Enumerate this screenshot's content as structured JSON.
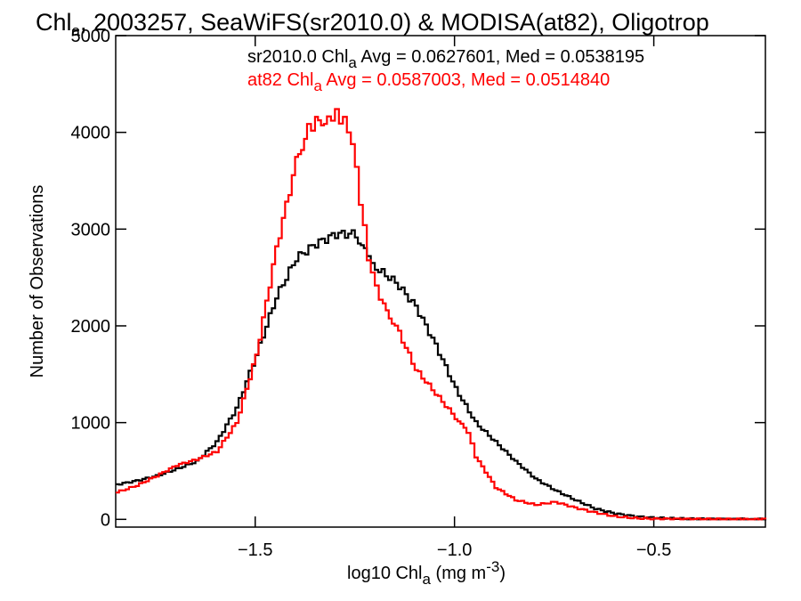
{
  "chart_data": {
    "type": "line",
    "title": {
      "text1": "Chl",
      "sub": "a",
      "text2": ", 2003257, SeaWiFS(sr2010.0) & MODISA(at82), Oligotrop"
    },
    "xlabel": {
      "text1": "log10 Chl",
      "sub": "a",
      "text2": " (mg m",
      "sup": "-3",
      "text3": ")"
    },
    "ylabel": "Number of Observations",
    "xlim": [
      -1.85,
      -0.22
    ],
    "ylim": [
      -80,
      5000
    ],
    "xticks": [
      {
        "v": -1.5,
        "label": "−1.5"
      },
      {
        "v": -1.0,
        "label": "−1.0"
      },
      {
        "v": -0.5,
        "label": "−0.5"
      }
    ],
    "yticks": [
      {
        "v": 0,
        "label": "0"
      },
      {
        "v": 1000,
        "label": "1000"
      },
      {
        "v": 2000,
        "label": "2000"
      },
      {
        "v": 3000,
        "label": "3000"
      },
      {
        "v": 4000,
        "label": "4000"
      },
      {
        "v": 5000,
        "label": "5000"
      }
    ],
    "step": true,
    "series": [
      {
        "name": "sr2010.0",
        "color": "#000000",
        "legend": {
          "text1": "sr2010.0 Chl",
          "sub": "a",
          "text2": " Avg = 0.0627601, Med = 0.0538195"
        },
        "x": [
          -1.85,
          -1.8,
          -1.75,
          -1.7,
          -1.65,
          -1.6,
          -1.55,
          -1.5,
          -1.45,
          -1.4,
          -1.35,
          -1.3,
          -1.25,
          -1.22,
          -1.2,
          -1.15,
          -1.1,
          -1.05,
          -1.0,
          -0.95,
          -0.9,
          -0.85,
          -0.8,
          -0.75,
          -0.7,
          -0.65,
          -0.6,
          -0.55,
          -0.5,
          -0.45,
          -0.4,
          -0.3,
          -0.22
        ],
        "y": [
          360,
          400,
          450,
          520,
          600,
          800,
          1150,
          1700,
          2300,
          2700,
          2850,
          2950,
          2950,
          2700,
          2600,
          2450,
          2200,
          1800,
          1350,
          1000,
          800,
          600,
          420,
          300,
          200,
          110,
          60,
          30,
          15,
          8,
          4,
          2,
          1
        ]
      },
      {
        "name": "at82",
        "color": "#ff0000",
        "legend": {
          "text1": "at82 Chl",
          "sub": "a",
          "text2": " Avg = 0.0587003, Med = 0.0514840"
        },
        "x": [
          -1.85,
          -1.8,
          -1.75,
          -1.7,
          -1.65,
          -1.6,
          -1.55,
          -1.5,
          -1.45,
          -1.4,
          -1.37,
          -1.35,
          -1.32,
          -1.3,
          -1.28,
          -1.26,
          -1.24,
          -1.22,
          -1.2,
          -1.18,
          -1.15,
          -1.1,
          -1.05,
          -1.0,
          -0.97,
          -0.95,
          -0.9,
          -0.85,
          -0.8,
          -0.75,
          -0.7,
          -0.65,
          -0.6,
          -0.55,
          -0.5,
          -0.4,
          -0.3,
          -0.22
        ],
        "y": [
          280,
          350,
          450,
          560,
          620,
          700,
          1000,
          1700,
          2800,
          3700,
          4050,
          4100,
          4150,
          4180,
          4120,
          3900,
          3300,
          2700,
          2400,
          2200,
          2000,
          1550,
          1300,
          1050,
          900,
          650,
          330,
          200,
          150,
          180,
          120,
          70,
          30,
          12,
          6,
          3,
          1,
          0
        ]
      }
    ]
  }
}
